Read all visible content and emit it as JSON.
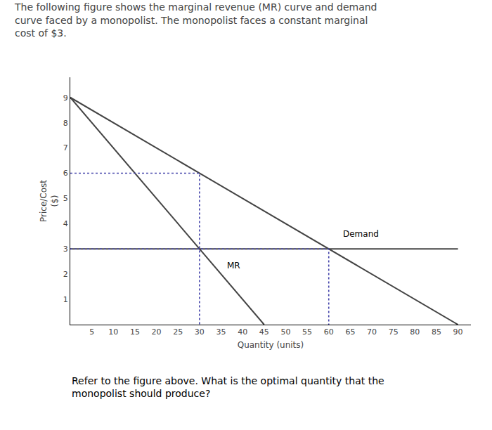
{
  "chart_data": {
    "type": "line",
    "title": "The following figure shows the marginal revenue (MR) curve and demand\ncurve faced by a monopolist. The monopolist faces a constant marginal\ncost of $3.",
    "caption": "Refer to the figure above. What is the optimal quantity that the\nmonopolist should produce?",
    "xlabel": "Quantity (units)",
    "ylabel": "Price/Cost\n($)",
    "series": [
      {
        "x": [
          0,
          90
        ],
        "values": [
          9,
          0
        ],
        "color": "#444444",
        "line_style": "solid"
      },
      {
        "x": [
          0,
          45
        ],
        "values": [
          9,
          0
        ],
        "color": "#444444",
        "line_style": "solid"
      },
      {
        "x": [
          0,
          90
        ],
        "values": [
          3,
          3
        ],
        "color": "#444444",
        "line_style": "solid"
      },
      {
        "x": [
          0,
          30,
          30
        ],
        "values": [
          6,
          6,
          0
        ],
        "color": "#4444aa",
        "line_style": "dotted"
      },
      {
        "x": [
          0,
          60,
          60
        ],
        "values": [
          3,
          3,
          0
        ],
        "color": "#4444aa",
        "line_style": "dotted"
      }
    ],
    "annotations": [
      {
        "text": "Demand",
        "x": 63,
        "y": 3.35
      },
      {
        "text": "MR",
        "x": 36,
        "y": 2.1
      }
    ],
    "xlim": [
      0,
      93
    ],
    "ylim": [
      0,
      9.8
    ],
    "xticks": [
      5,
      10,
      15,
      20,
      25,
      30,
      35,
      40,
      45,
      50,
      55,
      60,
      65,
      70,
      75,
      80,
      85,
      90
    ],
    "yticks": [
      1,
      2,
      3,
      4,
      5,
      6,
      7,
      8,
      9
    ],
    "grid": false
  }
}
